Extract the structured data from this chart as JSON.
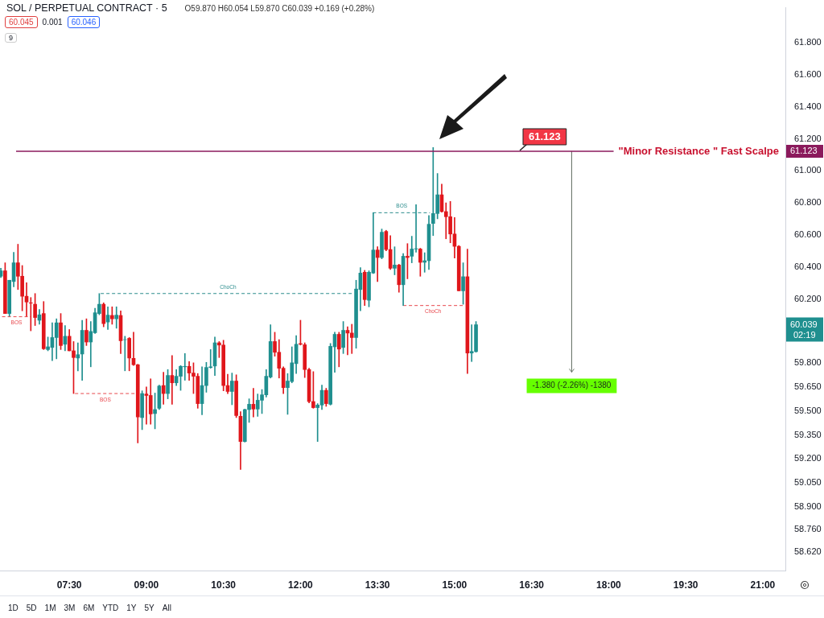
{
  "chart_data": {
    "type": "candlestick",
    "title": "SOL / PERPETUAL CONTRACT · 5",
    "subtitle": "O59.870 H60.054 L59.870 C60.039 +0.169 (+0.28%)",
    "x": [
      6.167,
      6.25,
      6.333,
      6.417,
      6.5,
      6.583,
      6.667,
      6.75,
      6.833,
      6.917,
      7,
      7.083,
      7.167,
      7.25,
      7.333,
      7.417,
      7.5,
      7.583,
      7.667,
      7.75,
      7.833,
      7.917,
      8,
      8.083,
      8.167,
      8.25,
      8.333,
      8.417,
      8.5,
      8.583,
      8.667,
      8.75,
      8.833,
      8.917,
      9,
      9.083,
      9.167,
      9.25,
      9.333,
      9.417,
      9.5,
      9.583,
      9.667,
      9.75,
      9.833,
      9.917,
      10,
      10.083,
      10.167,
      10.25,
      10.333,
      10.417,
      10.5,
      10.583,
      10.667,
      10.75,
      10.833,
      10.917,
      11,
      11.083,
      11.167,
      11.25,
      11.333,
      11.417,
      11.5,
      11.583,
      11.667,
      11.75,
      11.833,
      11.917,
      12,
      12.083,
      12.167,
      12.25,
      12.333,
      12.417,
      12.5,
      12.583,
      12.667,
      12.75,
      12.833,
      12.917,
      13,
      13.083,
      13.167,
      13.25,
      13.333,
      13.417,
      13.5,
      13.583,
      13.667,
      13.75,
      13.833,
      13.917,
      14,
      14.083,
      14.167,
      14.25,
      14.333,
      14.417,
      14.5,
      14.583,
      14.667,
      14.75,
      14.833,
      14.917,
      15,
      15.083,
      15.167,
      15.25,
      15.333,
      15.417
    ],
    "ohlc": [
      [
        60.342,
        60.392,
        60.334,
        60.376
      ],
      [
        60.376,
        60.426,
        60.109,
        60.109
      ],
      [
        60.109,
        60.317,
        60.092,
        60.317
      ],
      [
        60.309,
        60.492,
        60.276,
        60.426
      ],
      [
        60.426,
        60.542,
        60.259,
        60.342
      ],
      [
        60.342,
        60.409,
        60.126,
        60.217
      ],
      [
        60.217,
        60.301,
        60.092,
        60.181
      ],
      [
        60.176,
        60.209,
        60.001,
        60.174
      ],
      [
        60.167,
        60.234,
        60.034,
        60.084
      ],
      [
        60.067,
        60.134,
        60.042,
        60.101
      ],
      [
        60.109,
        60.184,
        59.884,
        59.889
      ],
      [
        59.884,
        59.962,
        59.876,
        59.901
      ],
      [
        59.897,
        60.051,
        59.814,
        59.959
      ],
      [
        59.959,
        60.076,
        59.826,
        60.051
      ],
      [
        60.051,
        60.109,
        59.884,
        59.909
      ],
      [
        59.917,
        60.034,
        59.876,
        59.967
      ],
      [
        59.967,
        60.009,
        59.876,
        59.876
      ],
      [
        59.876,
        59.934,
        59.609,
        59.834
      ],
      [
        59.831,
        59.926,
        59.751,
        59.852
      ],
      [
        59.856,
        60.067,
        59.692,
        60.004
      ],
      [
        60.004,
        60.076,
        59.909,
        59.931
      ],
      [
        59.931,
        60.059,
        59.776,
        59.997
      ],
      [
        59.989,
        60.142,
        59.984,
        60.114
      ],
      [
        60.109,
        60.234,
        60.101,
        60.167
      ],
      [
        60.167,
        60.176,
        60.026,
        60.046
      ],
      [
        60.056,
        60.151,
        60.009,
        60.099
      ],
      [
        60.097,
        60.151,
        60.042,
        60.076
      ],
      [
        60.076,
        60.151,
        60.017,
        60.099
      ],
      [
        60.097,
        60.126,
        59.859,
        59.939
      ],
      [
        59.946,
        59.967,
        59.751,
        59.946
      ],
      [
        59.954,
        59.959,
        59.751,
        59.831
      ],
      [
        59.829,
        59.992,
        59.784,
        59.789
      ],
      [
        59.789,
        59.792,
        59.3,
        59.462
      ],
      [
        59.459,
        59.626,
        59.384,
        59.609
      ],
      [
        59.606,
        59.651,
        59.417,
        59.597
      ],
      [
        59.597,
        59.701,
        59.417,
        59.482
      ],
      [
        59.484,
        59.612,
        59.389,
        59.509
      ],
      [
        59.517,
        59.662,
        59.509,
        59.656
      ],
      [
        59.659,
        59.742,
        59.542,
        59.609
      ],
      [
        59.609,
        59.759,
        59.576,
        59.722
      ],
      [
        59.722,
        59.846,
        59.542,
        59.676
      ],
      [
        59.676,
        59.759,
        59.659,
        59.717
      ],
      [
        59.717,
        59.784,
        59.629,
        59.779
      ],
      [
        59.776,
        59.859,
        59.692,
        59.779
      ],
      [
        59.779,
        59.809,
        59.692,
        59.737
      ],
      [
        59.737,
        59.801,
        59.609,
        59.717
      ],
      [
        59.717,
        59.734,
        59.517,
        59.546
      ],
      [
        59.546,
        59.776,
        59.476,
        59.659
      ],
      [
        59.659,
        59.804,
        59.617,
        59.772
      ],
      [
        59.772,
        59.884,
        59.767,
        59.776
      ],
      [
        59.781,
        59.962,
        59.722,
        59.926
      ],
      [
        59.926,
        59.934,
        59.834,
        59.912
      ],
      [
        59.912,
        59.942,
        59.626,
        59.659
      ],
      [
        59.659,
        59.729,
        59.609,
        59.622
      ],
      [
        59.622,
        59.737,
        59.539,
        59.687
      ],
      [
        59.687,
        59.726,
        59.459,
        59.472
      ],
      [
        59.467,
        59.496,
        59.134,
        59.309
      ],
      [
        59.309,
        59.512,
        59.306,
        59.509
      ],
      [
        59.509,
        59.576,
        59.429,
        59.542
      ],
      [
        59.542,
        59.642,
        59.462,
        59.512
      ],
      [
        59.512,
        59.606,
        59.467,
        59.567
      ],
      [
        59.567,
        59.634,
        59.484,
        59.601
      ],
      [
        59.601,
        59.759,
        59.587,
        59.717
      ],
      [
        59.712,
        60.039,
        59.706,
        59.934
      ],
      [
        59.934,
        59.992,
        59.842,
        59.867
      ],
      [
        59.867,
        59.946,
        59.706,
        59.767
      ],
      [
        59.767,
        59.776,
        59.609,
        59.646
      ],
      [
        59.646,
        59.734,
        59.479,
        59.687
      ],
      [
        59.684,
        59.901,
        59.676,
        59.801
      ],
      [
        59.796,
        59.971,
        59.734,
        59.917
      ],
      [
        59.921,
        60.067,
        59.912,
        59.917
      ],
      [
        59.914,
        59.926,
        59.709,
        59.759
      ],
      [
        59.759,
        59.767,
        59.551,
        59.559
      ],
      [
        59.559,
        59.746,
        59.517,
        59.521
      ],
      [
        59.521,
        59.546,
        59.309,
        59.537
      ],
      [
        59.537,
        59.662,
        59.509,
        59.629
      ],
      [
        59.629,
        59.642,
        59.529,
        59.546
      ],
      [
        59.542,
        59.922,
        59.537,
        59.904
      ],
      [
        59.901,
        59.992,
        59.742,
        59.979
      ],
      [
        59.979,
        59.992,
        59.776,
        59.887
      ],
      [
        59.897,
        60.059,
        59.859,
        60.004
      ],
      [
        60.004,
        60.026,
        59.851,
        59.987
      ],
      [
        59.987,
        60.042,
        59.859,
        59.959
      ],
      [
        59.959,
        60.317,
        59.892,
        60.262
      ],
      [
        60.259,
        60.396,
        60.126,
        60.362
      ],
      [
        60.367,
        60.379,
        60.159,
        60.196
      ],
      [
        60.192,
        60.376,
        60.151,
        60.367
      ],
      [
        60.362,
        60.739,
        60.359,
        60.506
      ],
      [
        60.506,
        60.526,
        60.309,
        60.459
      ],
      [
        60.459,
        60.637,
        60.451,
        60.617
      ],
      [
        60.622,
        60.629,
        60.501,
        60.509
      ],
      [
        60.509,
        60.596,
        60.384,
        60.392
      ],
      [
        60.392,
        60.526,
        60.351,
        60.412
      ],
      [
        60.412,
        60.417,
        60.242,
        60.289
      ],
      [
        60.289,
        60.484,
        60.159,
        60.467
      ],
      [
        60.467,
        60.546,
        60.326,
        60.459
      ],
      [
        60.467,
        60.592,
        60.426,
        60.512
      ],
      [
        60.512,
        60.789,
        60.492,
        60.514
      ],
      [
        60.512,
        60.517,
        60.342,
        60.429
      ],
      [
        60.429,
        60.489,
        60.367,
        60.439
      ],
      [
        60.439,
        60.722,
        60.384,
        60.667
      ],
      [
        60.672,
        61.146,
        60.596,
        60.734
      ],
      [
        60.734,
        60.984,
        60.701,
        60.851
      ],
      [
        60.851,
        60.917,
        60.742,
        60.746
      ],
      [
        60.746,
        60.801,
        60.576,
        60.714
      ],
      [
        60.714,
        60.809,
        60.551,
        60.606
      ],
      [
        60.606,
        60.709,
        60.456,
        60.529
      ],
      [
        60.529,
        60.534,
        60.251,
        60.251
      ],
      [
        60.251,
        60.426,
        60.167,
        60.339
      ],
      [
        60.339,
        60.512,
        59.734,
        59.862
      ],
      [
        59.862,
        60.039,
        59.809,
        59.872
      ],
      [
        59.871,
        60.059,
        59.867,
        60.039
      ]
    ],
    "series": [
      {
        "type": "line",
        "x": [
          8.11,
          13.02
        ],
        "values": [
          60.234,
          60.234
        ],
        "color": "#2a8c8c",
        "line_style": "dashed"
      },
      {
        "type": "line",
        "x": [
          6.19,
          6.75
        ],
        "values": [
          60.089,
          60.089
        ],
        "color": "#e8474c",
        "line_style": "dashed"
      },
      {
        "type": "line",
        "x": [
          7.61,
          8.78
        ],
        "values": [
          59.609,
          59.609
        ],
        "color": "#e8474c",
        "line_style": "dashed"
      },
      {
        "type": "line",
        "x": [
          13.41,
          14.52
        ],
        "values": [
          60.739,
          60.739
        ],
        "color": "#2a8c8c",
        "line_style": "dashed"
      },
      {
        "type": "line",
        "x": [
          14.0,
          15.17
        ],
        "values": [
          60.159,
          60.159
        ],
        "color": "#e8474c",
        "line_style": "dashed"
      },
      {
        "type": "line",
        "x": [
          17.28,
          17.28
        ],
        "values": [
          61.123,
          59.743
        ],
        "color": "#6d7a6d",
        "line_style": "solid"
      }
    ],
    "ref_lines": [
      {
        "axis": "y",
        "value": 61.123,
        "label": "\"Minor Resistance \" Fast Scalpe",
        "color": "#8b1a5c"
      }
    ],
    "annotations": [
      {
        "text": "ChoCh",
        "x": 10.59,
        "y": 60.234
      },
      {
        "text": "BOS",
        "x": 6.47,
        "y": 60.089
      },
      {
        "text": "BOS",
        "x": 8.2,
        "y": 59.609
      },
      {
        "text": "BOS",
        "x": 13.97,
        "y": 60.739
      },
      {
        "text": "ChoCh",
        "x": 14.58,
        "y": 60.159
      },
      {
        "text": "61.123",
        "x": 16.27,
        "y": 61.123
      },
      {
        "text": "-1.380 (-2.26%) -1380",
        "x": 17.28,
        "y": 59.743
      },
      "60.045",
      "0.001",
      "60.046",
      "9",
      "60.039",
      "02:19",
      "1D",
      "5D",
      "1M",
      "3M",
      "6M",
      "YTD",
      "1Y",
      "5Y",
      "All"
    ],
    "xlim": [
      6.15,
      21.44
    ],
    "xticks": [
      {
        "value": 7.5,
        "label": "07:30"
      },
      {
        "value": 9,
        "label": "09:00"
      },
      {
        "value": 10.5,
        "label": "10:30"
      },
      {
        "value": 12,
        "label": "12:00"
      },
      {
        "value": 13.5,
        "label": "13:30"
      },
      {
        "value": 15,
        "label": "15:00"
      },
      {
        "value": 16.5,
        "label": "16:30"
      },
      {
        "value": 18,
        "label": "18:00"
      },
      {
        "value": 19.5,
        "label": "19:30"
      },
      {
        "value": 21,
        "label": "21:00"
      }
    ],
    "ylim": [
      58.5,
      62.02
    ],
    "yticks": [
      {
        "value": 58.62,
        "label": "58.620"
      },
      {
        "value": 58.76,
        "label": "58.760"
      },
      {
        "value": 58.9,
        "label": "58.900"
      },
      {
        "value": 59.05,
        "label": "59.050"
      },
      {
        "value": 59.2,
        "label": "59.200"
      },
      {
        "value": 59.35,
        "label": "59.350"
      },
      {
        "value": 59.5,
        "label": "59.500"
      },
      {
        "value": 59.65,
        "label": "59.650"
      },
      {
        "value": 59.8,
        "label": "59.800"
      },
      {
        "value": 60.2,
        "label": "60.200"
      },
      {
        "value": 60.4,
        "label": "60.400"
      },
      {
        "value": 60.6,
        "label": "60.600"
      },
      {
        "value": 60.8,
        "label": "60.800"
      },
      {
        "value": 61,
        "label": "61.000"
      },
      {
        "value": 61.2,
        "label": "61.200"
      },
      {
        "value": 61.4,
        "label": "61.400"
      },
      {
        "value": 61.6,
        "label": "61.600"
      },
      {
        "value": 61.8,
        "label": "61.800"
      }
    ],
    "grid": false,
    "legend": false
  }
}
